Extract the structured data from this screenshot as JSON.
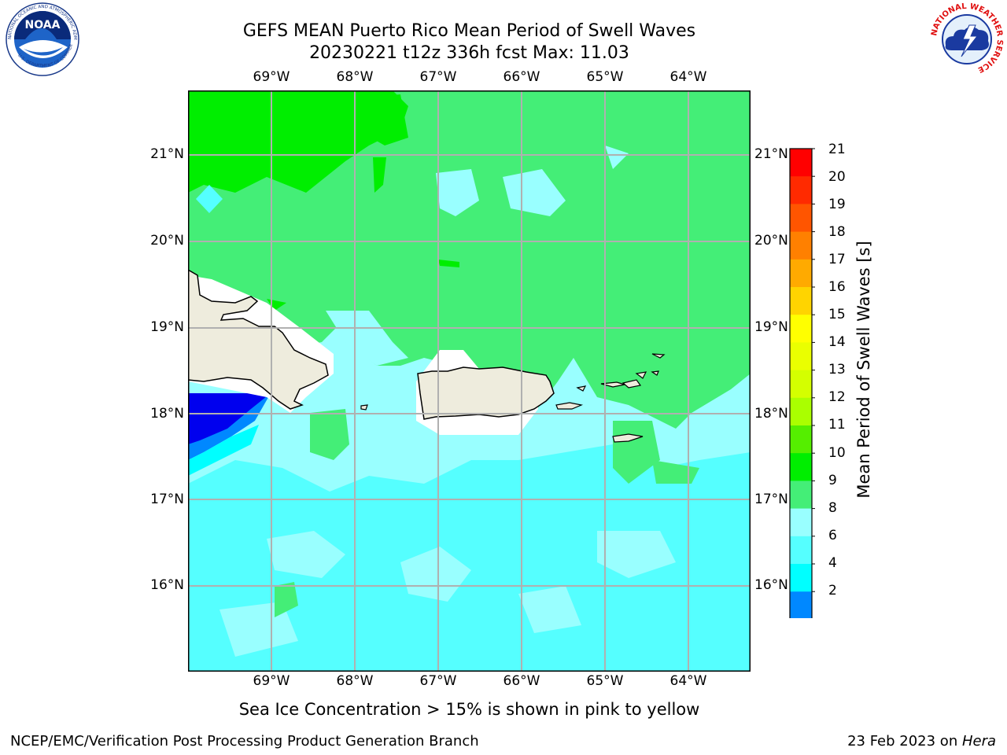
{
  "title": {
    "line1": "GEFS MEAN Puerto Rico Mean Period of Swell Waves",
    "line2": "20230221 t12z 336h fcst   Max: 11.03"
  },
  "logos": {
    "left": {
      "text": "NOAA",
      "ring_top": "NATIONAL OCEANIC AND ATMOSPHERIC ADMINISTRATION",
      "ring_bottom": "U.S. DEPARTMENT OF COMMERCE"
    },
    "right": {
      "ring_text": "NATIONAL WEATHER SERVICE"
    }
  },
  "map": {
    "lon_ticks": [
      "69°W",
      "68°W",
      "67°W",
      "66°W",
      "65°W",
      "64°W"
    ],
    "lat_ticks": [
      "21°N",
      "20°N",
      "19°N",
      "18°N",
      "17°N",
      "16°N"
    ],
    "land_color": "#eeecdd",
    "grid_color": "#b0b0b0"
  },
  "colorbar": {
    "title": "Mean Period of Swell Waves [s]",
    "labels": [
      "21",
      "20",
      "19",
      "18",
      "17",
      "16",
      "15",
      "14",
      "13",
      "12",
      "11",
      "10",
      "9",
      "8",
      "6",
      "4",
      "2"
    ],
    "colors_top_to_bottom": [
      "#ff0000",
      "#ff2a00",
      "#ff5500",
      "#ff8000",
      "#ffaa00",
      "#ffd400",
      "#ffff00",
      "#eaff00",
      "#d4ff00",
      "#aaff00",
      "#55ee00",
      "#00ee00",
      "#44ee77",
      "#99ffff",
      "#55ffff",
      "#00ffff",
      "#0088ff"
    ],
    "extend_color": "#0000ee"
  },
  "subnote": "Sea Ice Concentration > 15% is shown in pink to yellow",
  "footer": {
    "left": "NCEP/EMC/Verification Post Processing Product Generation Branch",
    "right_date": "23 Feb 2023 on ",
    "right_host": "Hera"
  }
}
